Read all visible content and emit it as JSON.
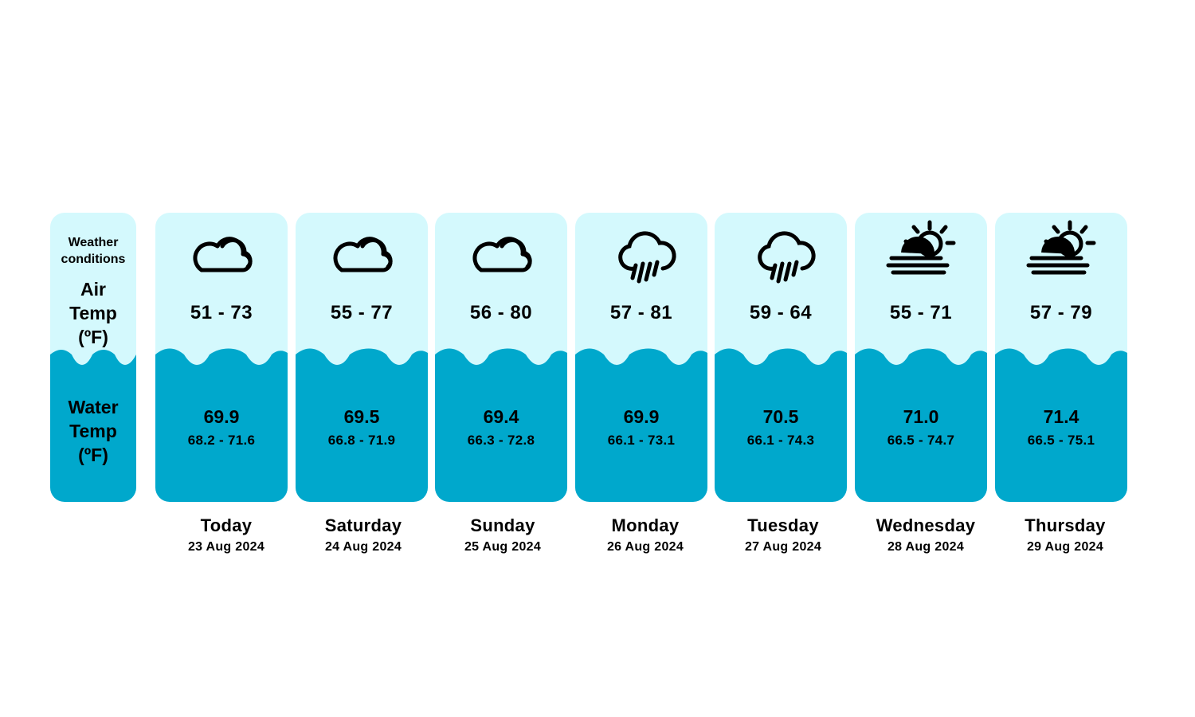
{
  "labels": {
    "conditions_line1": "Weather",
    "conditions_line2": "conditions",
    "air_line1": "Air",
    "air_line2": "Temp",
    "air_line3": "(ºF)",
    "water_line1": "Water",
    "water_line2": "Temp",
    "water_line3": "(ºF)"
  },
  "colors": {
    "air_band": "#d4f9fd",
    "water_band": "#00a8cc"
  },
  "days": [
    {
      "name": "Today",
      "date": "23 Aug 2024",
      "icon": "cloudy-icon",
      "air_range": "51 - 73",
      "water_avg": "69.9",
      "water_range": "68.2 - 71.6"
    },
    {
      "name": "Saturday",
      "date": "24 Aug 2024",
      "icon": "cloudy-icon",
      "air_range": "55 - 77",
      "water_avg": "69.5",
      "water_range": "66.8 - 71.9"
    },
    {
      "name": "Sunday",
      "date": "25 Aug 2024",
      "icon": "cloudy-icon",
      "air_range": "56 - 80",
      "water_avg": "69.4",
      "water_range": "66.3 - 72.8"
    },
    {
      "name": "Monday",
      "date": "26 Aug 2024",
      "icon": "rain-icon",
      "air_range": "57 - 81",
      "water_avg": "69.9",
      "water_range": "66.1 - 73.1"
    },
    {
      "name": "Tuesday",
      "date": "27 Aug 2024",
      "icon": "rain-icon",
      "air_range": "59 - 64",
      "water_avg": "70.5",
      "water_range": "66.1 - 74.3"
    },
    {
      "name": "Wednesday",
      "date": "28 Aug 2024",
      "icon": "sun-fog-icon",
      "air_range": "55 - 71",
      "water_avg": "71.0",
      "water_range": "66.5 - 74.7"
    },
    {
      "name": "Thursday",
      "date": "29 Aug 2024",
      "icon": "sun-fog-icon",
      "air_range": "57 - 79",
      "water_avg": "71.4",
      "water_range": "66.5 - 75.1"
    }
  ]
}
